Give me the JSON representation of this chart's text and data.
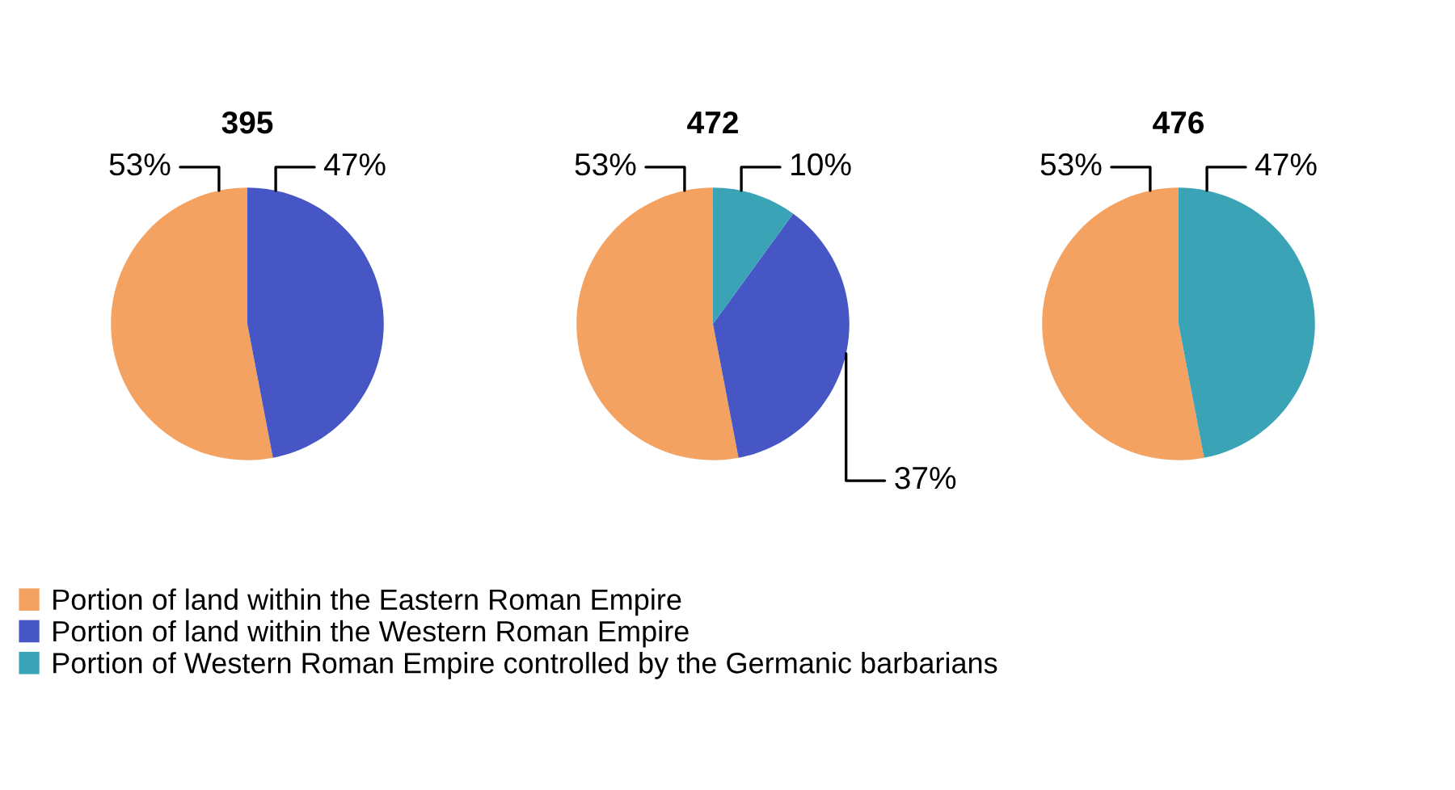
{
  "chart_data": [
    {
      "type": "pie",
      "title": "395",
      "categories": [
        null,
        null
      ],
      "values": [
        53,
        47
      ],
      "colors": [
        "#f4a262",
        "#4656c4"
      ],
      "value_labels": [
        "53%",
        "47%"
      ]
    },
    {
      "type": "pie",
      "title": "472",
      "categories": [
        "Portion of land within the Eastern Roman Empire",
        "Portion of land within the Western Roman Empire",
        "Portion of Western Roman Empire controlled by the Germanic barbarians"
      ],
      "values": [
        53,
        37,
        10
      ],
      "colors": [
        "#f4a262",
        "#4656c4",
        "#3aa3b5"
      ],
      "value_labels": [
        "53%",
        "37%",
        "10%"
      ],
      "legend": "bottom left"
    },
    {
      "type": "pie",
      "title": "476",
      "categories": [
        null,
        null
      ],
      "values": [
        53,
        47
      ],
      "colors": [
        "#f4a262",
        "#3aa3b5"
      ],
      "value_labels": [
        "53%",
        "47%"
      ]
    }
  ]
}
